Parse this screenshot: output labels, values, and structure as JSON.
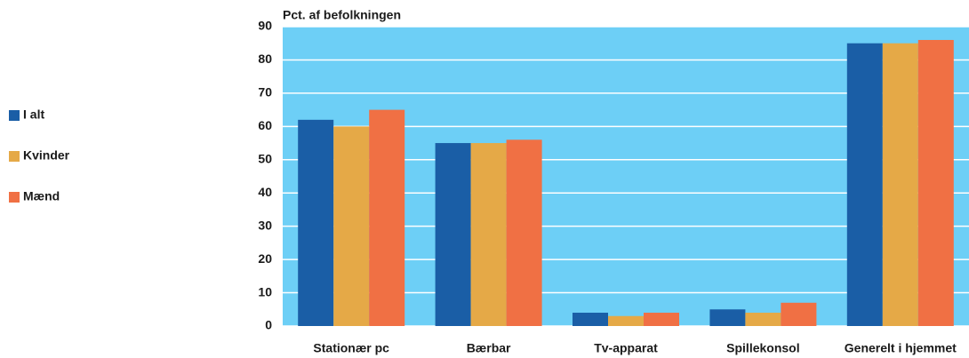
{
  "chart_data": {
    "type": "bar",
    "y_label": "Pct. af befolkningen",
    "categories": [
      "Stationær pc",
      "Bærbar",
      "Tv-apparat",
      "Spillekonsol",
      "Generelt i hjemmet"
    ],
    "series": [
      {
        "name": "I alt",
        "color": "#1a5ea6",
        "values": [
          62,
          55,
          4,
          5,
          85
        ]
      },
      {
        "name": "Kvinder",
        "color": "#e5a947",
        "values": [
          60,
          55,
          3,
          4,
          85
        ]
      },
      {
        "name": "Mænd",
        "color": "#f07044",
        "values": [
          65,
          56,
          4,
          7,
          86
        ]
      }
    ],
    "ylim": [
      0,
      90
    ],
    "yticks": [
      0,
      10,
      20,
      30,
      40,
      50,
      60,
      70,
      80,
      90
    ],
    "grid": true,
    "legend": "left"
  }
}
